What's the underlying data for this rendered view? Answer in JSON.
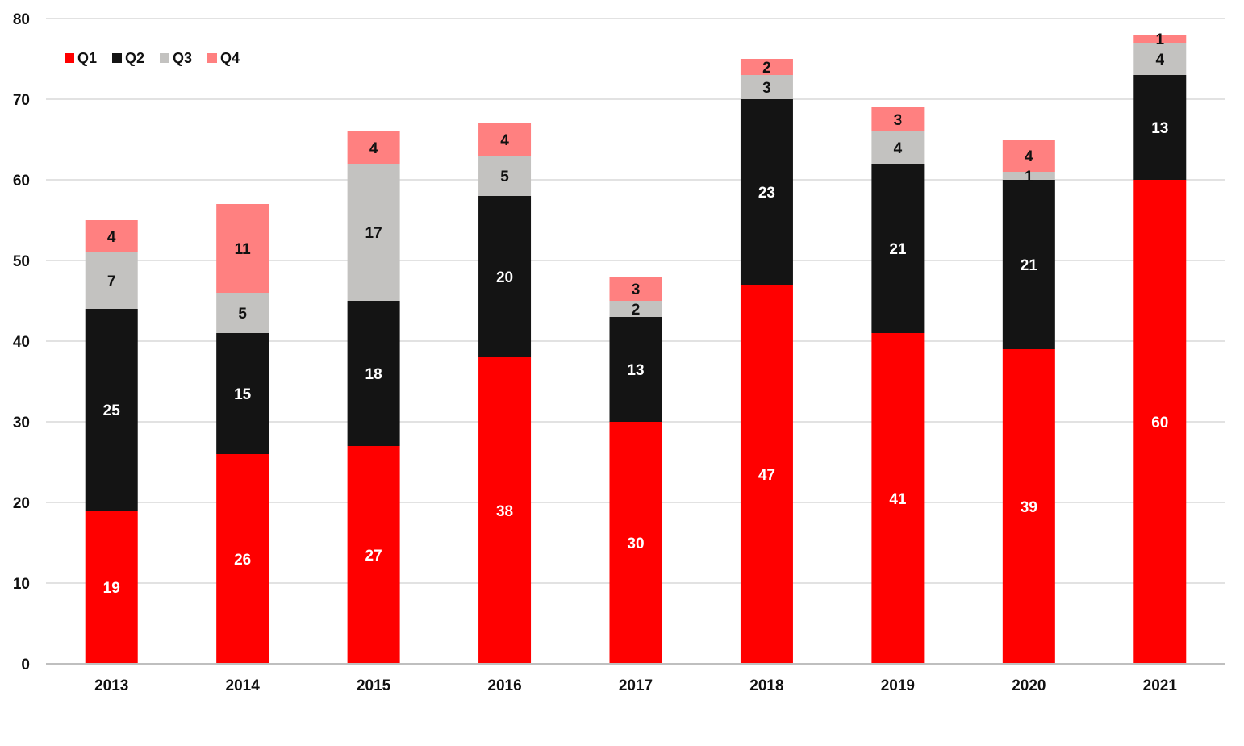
{
  "chart_data": {
    "type": "bar",
    "stacked": true,
    "categories": [
      "2013",
      "2014",
      "2015",
      "2016",
      "2017",
      "2018",
      "2019",
      "2020",
      "2021"
    ],
    "series": [
      {
        "name": "Q1",
        "color": "#ff0000",
        "label_color": "#ffffff",
        "values": [
          19,
          26,
          27,
          38,
          30,
          47,
          41,
          39,
          60
        ]
      },
      {
        "name": "Q2",
        "color": "#141414",
        "label_color": "#ffffff",
        "values": [
          25,
          15,
          18,
          20,
          13,
          23,
          21,
          21,
          13
        ]
      },
      {
        "name": "Q3",
        "color": "#c3c2c0",
        "label_color": "#111111",
        "values": [
          7,
          5,
          17,
          5,
          2,
          3,
          4,
          1,
          4
        ]
      },
      {
        "name": "Q4",
        "color": "#ff8080",
        "label_color": "#111111",
        "values": [
          4,
          11,
          4,
          4,
          3,
          2,
          3,
          4,
          1
        ]
      }
    ],
    "yticks": [
      0,
      10,
      20,
      30,
      40,
      50,
      60,
      70,
      80
    ],
    "ylim": [
      0,
      80
    ],
    "grid": true,
    "legend_position": "top-left",
    "data_labels": true
  }
}
